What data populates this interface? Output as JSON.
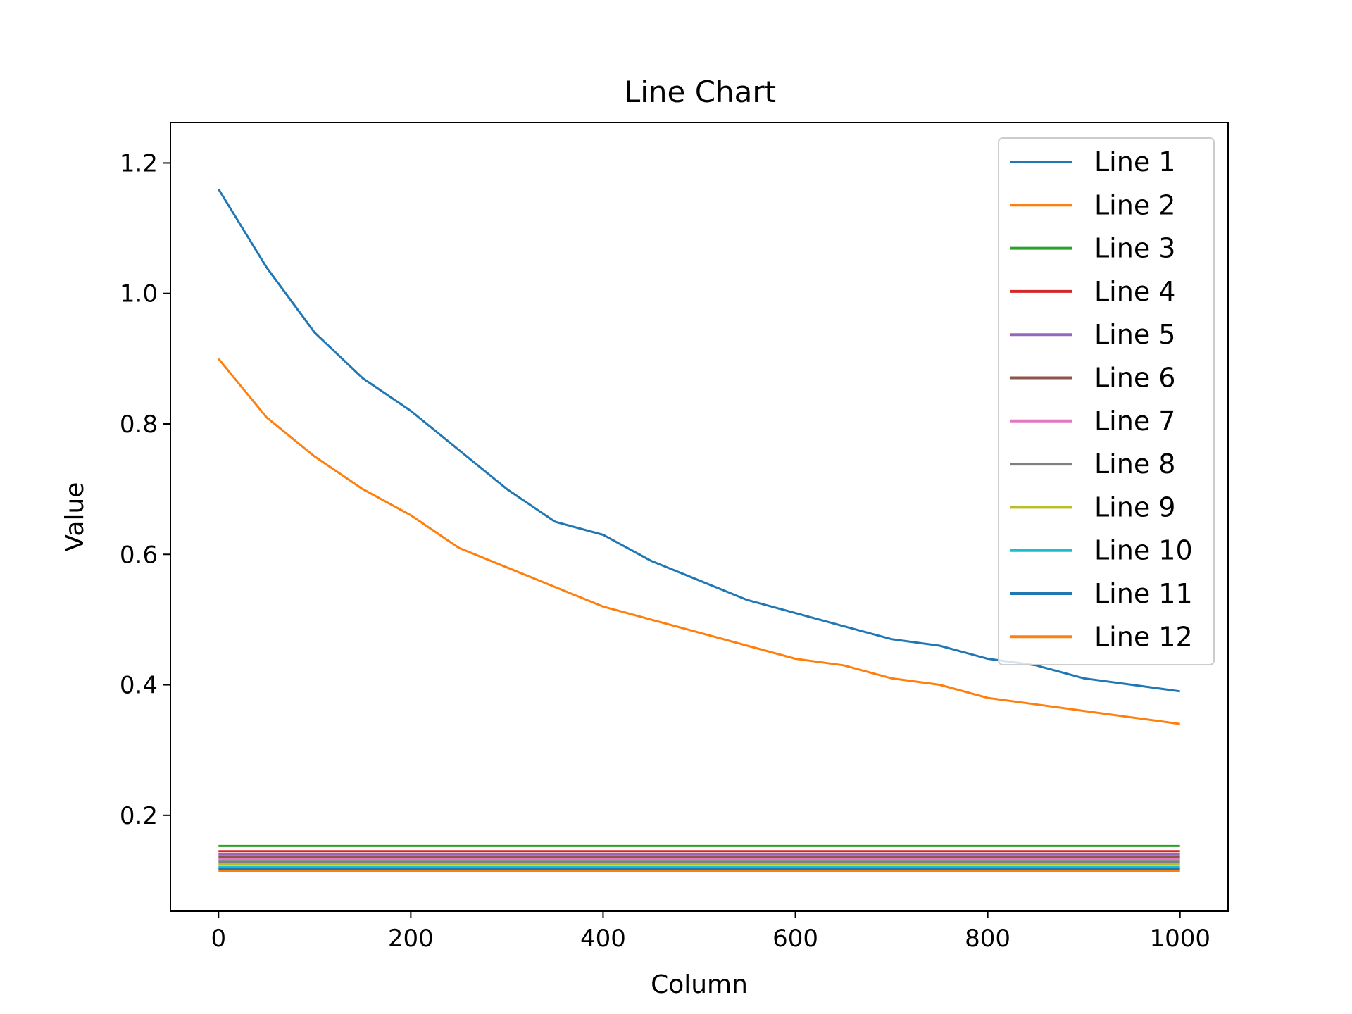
{
  "chart_data": {
    "type": "line",
    "title": "Line Chart",
    "xlabel": "Column",
    "ylabel": "Value",
    "xlim": [
      -50,
      1050
    ],
    "ylim": [
      0.053,
      1.262
    ],
    "x_ticks": [
      0,
      200,
      400,
      600,
      800,
      1000
    ],
    "x_tick_labels": [
      "0",
      "200",
      "400",
      "600",
      "800",
      "1000"
    ],
    "y_ticks": [
      0.2,
      0.4,
      0.6,
      0.8,
      1.0,
      1.2
    ],
    "y_tick_labels": [
      "0.2",
      "0.4",
      "0.6",
      "0.8",
      "1.0",
      "1.2"
    ],
    "grid": false,
    "legend_position": "top-right",
    "x": [
      0,
      50,
      100,
      150,
      200,
      250,
      300,
      350,
      400,
      450,
      500,
      550,
      600,
      650,
      700,
      750,
      800,
      850,
      900,
      950,
      1000
    ],
    "series": [
      {
        "name": "Line 1",
        "color": "#1f77b4",
        "values": [
          1.16,
          1.04,
          0.94,
          0.87,
          0.82,
          0.76,
          0.7,
          0.65,
          0.63,
          0.59,
          0.56,
          0.53,
          0.51,
          0.49,
          0.47,
          0.46,
          0.44,
          0.43,
          0.41,
          0.4,
          0.39
        ]
      },
      {
        "name": "Line 2",
        "color": "#ff7f0e",
        "values": [
          0.9,
          0.81,
          0.75,
          0.7,
          0.66,
          0.61,
          0.58,
          0.55,
          0.52,
          0.5,
          0.48,
          0.46,
          0.44,
          0.43,
          0.41,
          0.4,
          0.38,
          0.37,
          0.36,
          0.35,
          0.34
        ]
      },
      {
        "name": "Line 3",
        "color": "#2ca02c",
        "values": [
          0.153,
          0.153,
          0.153,
          0.153,
          0.153,
          0.153,
          0.153,
          0.153,
          0.153,
          0.153,
          0.153,
          0.153,
          0.153,
          0.153,
          0.153,
          0.153,
          0.153,
          0.153,
          0.153,
          0.153,
          0.153
        ]
      },
      {
        "name": "Line 4",
        "color": "#d62728",
        "values": [
          0.145,
          0.145,
          0.145,
          0.145,
          0.145,
          0.145,
          0.145,
          0.145,
          0.145,
          0.145,
          0.145,
          0.145,
          0.145,
          0.145,
          0.145,
          0.145,
          0.145,
          0.145,
          0.145,
          0.145,
          0.145
        ]
      },
      {
        "name": "Line 5",
        "color": "#9467bd",
        "values": [
          0.14,
          0.14,
          0.14,
          0.14,
          0.14,
          0.14,
          0.14,
          0.14,
          0.14,
          0.14,
          0.14,
          0.14,
          0.14,
          0.14,
          0.14,
          0.14,
          0.14,
          0.14,
          0.14,
          0.14,
          0.14
        ]
      },
      {
        "name": "Line 6",
        "color": "#8c564b",
        "values": [
          0.136,
          0.136,
          0.136,
          0.136,
          0.136,
          0.136,
          0.136,
          0.136,
          0.136,
          0.136,
          0.136,
          0.136,
          0.136,
          0.136,
          0.136,
          0.136,
          0.136,
          0.136,
          0.136,
          0.136,
          0.136
        ]
      },
      {
        "name": "Line 7",
        "color": "#e377c2",
        "values": [
          0.133,
          0.133,
          0.133,
          0.133,
          0.133,
          0.133,
          0.133,
          0.133,
          0.133,
          0.133,
          0.133,
          0.133,
          0.133,
          0.133,
          0.133,
          0.133,
          0.133,
          0.133,
          0.133,
          0.133,
          0.133
        ]
      },
      {
        "name": "Line 8",
        "color": "#7f7f7f",
        "values": [
          0.129,
          0.129,
          0.129,
          0.129,
          0.129,
          0.129,
          0.129,
          0.129,
          0.129,
          0.129,
          0.129,
          0.129,
          0.129,
          0.129,
          0.129,
          0.129,
          0.129,
          0.129,
          0.129,
          0.129,
          0.129
        ]
      },
      {
        "name": "Line 9",
        "color": "#bcbd22",
        "values": [
          0.125,
          0.125,
          0.125,
          0.125,
          0.125,
          0.125,
          0.125,
          0.125,
          0.125,
          0.125,
          0.125,
          0.125,
          0.125,
          0.125,
          0.125,
          0.125,
          0.125,
          0.125,
          0.125,
          0.125,
          0.125
        ]
      },
      {
        "name": "Line 10",
        "color": "#17becf",
        "values": [
          0.121,
          0.121,
          0.121,
          0.121,
          0.121,
          0.121,
          0.121,
          0.121,
          0.121,
          0.121,
          0.121,
          0.121,
          0.121,
          0.121,
          0.121,
          0.121,
          0.121,
          0.121,
          0.121,
          0.121,
          0.121
        ]
      },
      {
        "name": "Line 11",
        "color": "#1f77b4",
        "values": [
          0.118,
          0.118,
          0.118,
          0.118,
          0.118,
          0.118,
          0.118,
          0.118,
          0.118,
          0.118,
          0.118,
          0.118,
          0.118,
          0.118,
          0.118,
          0.118,
          0.118,
          0.118,
          0.118,
          0.118,
          0.118
        ]
      },
      {
        "name": "Line 12",
        "color": "#ff7f0e",
        "values": [
          0.114,
          0.114,
          0.114,
          0.114,
          0.114,
          0.114,
          0.114,
          0.114,
          0.114,
          0.114,
          0.114,
          0.114,
          0.114,
          0.114,
          0.114,
          0.114,
          0.114,
          0.114,
          0.114,
          0.114,
          0.114
        ]
      }
    ]
  }
}
